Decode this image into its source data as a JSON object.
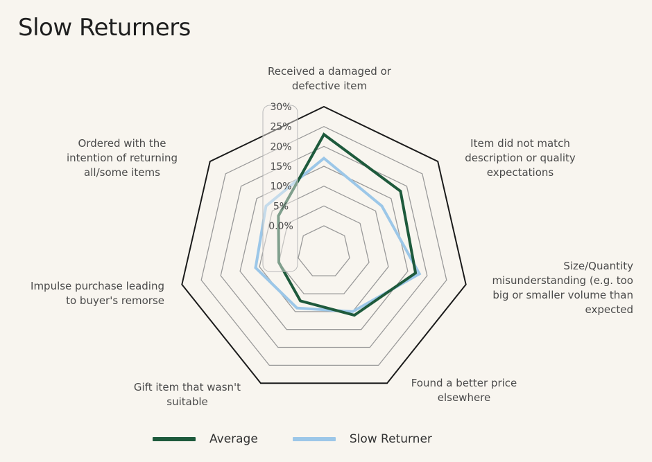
{
  "chart_data": {
    "type": "radar",
    "title": "Slow Returners",
    "axes": [
      "Received a damaged or defective item",
      "Item did not match description or quality expectations",
      "Size/Quantity misunderstanding (e.g. too big or smaller volume than expected",
      "Found a better price elsewhere",
      "Gift item that wasn't suitable",
      "Impulse purchase leading to buyer's remorse",
      "Ordered with the intention of returning all/some items"
    ],
    "axis_label_lines": [
      [
        "Received a damaged or",
        "defective item"
      ],
      [
        "Item did not match",
        "description or quality",
        "expectations"
      ],
      [
        "Size/Quantity",
        "misunderstanding (e.g. too",
        "big or smaller volume than",
        "expected"
      ],
      [
        "Found a better price",
        "elsewhere"
      ],
      [
        "Gift item that wasn't",
        "suitable"
      ],
      [
        "Impulse purchase leading",
        "to buyer's remorse"
      ],
      [
        "Ordered with the",
        "intention of returning",
        "all/some items"
      ]
    ],
    "tick_labels": [
      "0.0%",
      "5%",
      "10%",
      "15%",
      "20%",
      "25%",
      "30%"
    ],
    "rlim": [
      0,
      30
    ],
    "grid": true,
    "legend_position": "bottom",
    "series": [
      {
        "name": "Average",
        "color": "#1e5a3c",
        "values": [
          23,
          18,
          17,
          11,
          7,
          5,
          8
        ]
      },
      {
        "name": "Slow Returner",
        "color": "#9cc7e8",
        "values": [
          17,
          12,
          18,
          10,
          9,
          11,
          12
        ]
      }
    ]
  }
}
